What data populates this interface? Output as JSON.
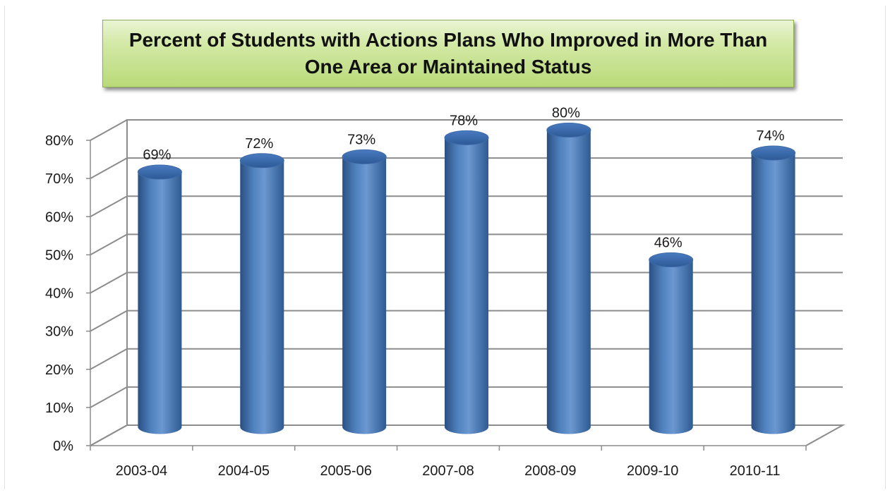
{
  "chart_data": {
    "type": "bar",
    "title": "Percent of Students with Actions Plans Who Improved in More Than One Area or Maintained Status",
    "categories": [
      "2003-04",
      "2004-05",
      "2005-06",
      "2007-08",
      "2008-09",
      "2009-10",
      "2010-11"
    ],
    "series": [
      {
        "values": [
          69,
          72,
          73,
          78,
          80,
          46,
          74
        ],
        "data_labels": [
          "69%",
          "72%",
          "73%",
          "78%",
          "80%",
          "46%",
          "74%"
        ],
        "color": "#4f81bd"
      }
    ],
    "y_ticks": [
      0,
      10,
      20,
      30,
      40,
      50,
      60,
      70,
      80
    ],
    "y_tick_labels": [
      "0%",
      "10%",
      "20%",
      "30%",
      "40%",
      "50%",
      "60%",
      "70%",
      "80%"
    ],
    "ylim": [
      0,
      80
    ],
    "xlabel": "",
    "ylabel": "",
    "grid": true,
    "legend": "none",
    "style": "3d-cylinder",
    "colors": {
      "bar": "#4f81bd",
      "bar_dark": "#2c5282",
      "bar_light": "#7ea6d8",
      "grid": "#8c8c8c",
      "title_box": "#c6e093"
    }
  }
}
